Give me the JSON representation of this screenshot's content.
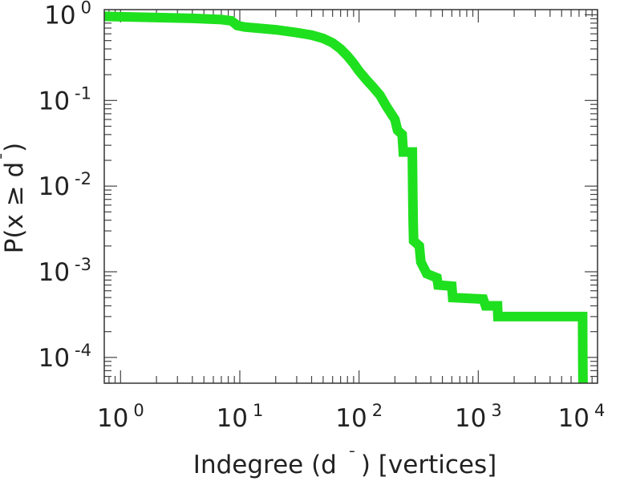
{
  "chart_data": {
    "type": "line",
    "title": "",
    "xlabel": "Indegree (d ¯) [vertices]",
    "xlabel_parts": {
      "main": "Indegree (d",
      "mark": "¯",
      "tail": ") [vertices]"
    },
    "ylabel": "P(x ≥ d¯)",
    "ylabel_parts": {
      "main": "P(x ≥ d",
      "mark": "¯",
      "tail": ")"
    },
    "x_scale": "log",
    "y_scale": "log",
    "xlim": [
      0.73,
      10000
    ],
    "ylim": [
      5e-05,
      1.15
    ],
    "x_ticks": [
      {
        "base": "10",
        "exp": "0",
        "value": 1
      },
      {
        "base": "10",
        "exp": "1",
        "value": 10
      },
      {
        "base": "10",
        "exp": "2",
        "value": 100
      },
      {
        "base": "10",
        "exp": "3",
        "value": 1000
      },
      {
        "base": "10",
        "exp": "4",
        "value": 10000
      }
    ],
    "y_ticks": [
      {
        "base": "10",
        "exp": "0",
        "value": 1
      },
      {
        "base": "10",
        "exp": "-1",
        "value": 0.1
      },
      {
        "base": "10",
        "exp": "-2",
        "value": 0.01
      },
      {
        "base": "10",
        "exp": "-3",
        "value": 0.001
      },
      {
        "base": "10",
        "exp": "-4",
        "value": 0.0001
      }
    ],
    "grid": false,
    "legend": "none",
    "series": [
      {
        "color": "#1fe01f",
        "points": [
          [
            0.73,
            0.96
          ],
          [
            1.0,
            0.95
          ],
          [
            2.0,
            0.93
          ],
          [
            4.0,
            0.91
          ],
          [
            7.0,
            0.88
          ],
          [
            8.5,
            0.85
          ],
          [
            9.0,
            0.8
          ],
          [
            9.5,
            0.75
          ],
          [
            11.0,
            0.72
          ],
          [
            20.0,
            0.67
          ],
          [
            30.0,
            0.62
          ],
          [
            40.0,
            0.58
          ],
          [
            50.0,
            0.53
          ],
          [
            60.0,
            0.47
          ],
          [
            70.0,
            0.4
          ],
          [
            80.0,
            0.33
          ],
          [
            90.0,
            0.27
          ],
          [
            100.0,
            0.22
          ],
          [
            115.0,
            0.175
          ],
          [
            130.0,
            0.145
          ],
          [
            150.0,
            0.115
          ],
          [
            170.0,
            0.085
          ],
          [
            200.0,
            0.06
          ],
          [
            210.0,
            0.045
          ],
          [
            230.0,
            0.04
          ],
          [
            235.0,
            0.025
          ],
          [
            280.0,
            0.025
          ],
          [
            282.0,
            0.009
          ],
          [
            284.0,
            0.004
          ],
          [
            287.0,
            0.0023
          ],
          [
            320.0,
            0.002
          ],
          [
            330.0,
            0.0013
          ],
          [
            370.0,
            0.00095
          ],
          [
            450.0,
            0.00085
          ],
          [
            460.0,
            0.0007
          ],
          [
            600.0,
            0.00068
          ],
          [
            610.0,
            0.0005
          ],
          [
            1100.0,
            0.00048
          ],
          [
            1150.0,
            0.0004
          ],
          [
            1450.0,
            0.0004
          ],
          [
            1460.0,
            0.0003
          ],
          [
            7500.0,
            0.0003
          ],
          [
            7520.0,
            0.0001
          ],
          [
            7560.0,
            5e-05
          ]
        ]
      }
    ]
  }
}
